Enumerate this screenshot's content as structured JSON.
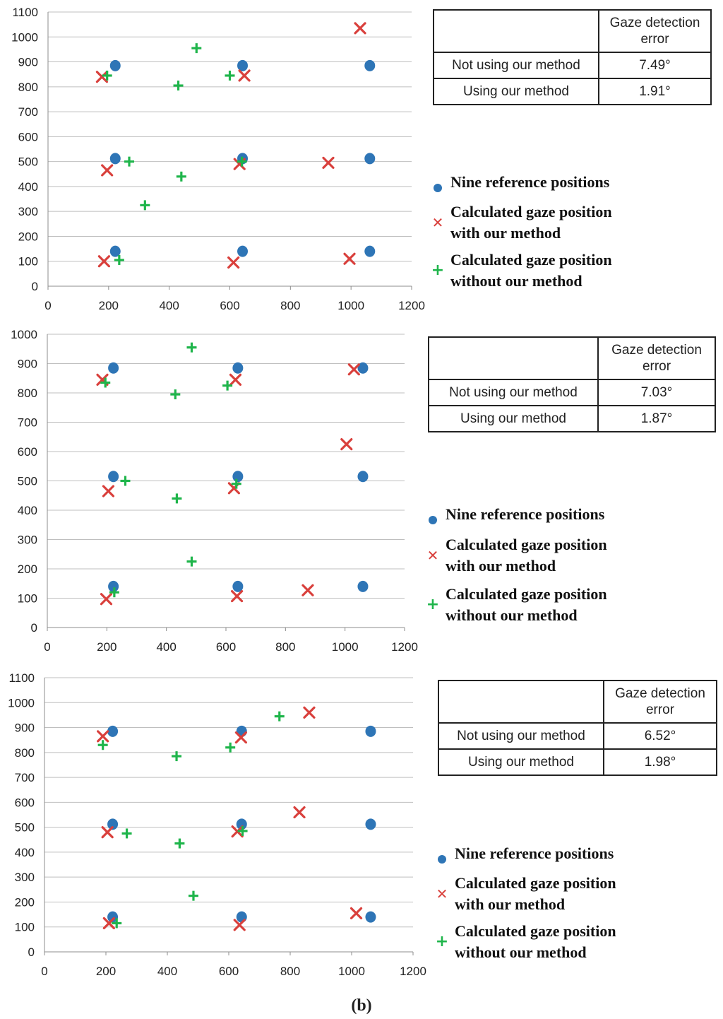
{
  "caption": "(b)",
  "colors": {
    "reference": "#2e75b6",
    "with": "#d9403c",
    "without": "#1fb54b",
    "grid": "#bfbfbf"
  },
  "legend": {
    "reference": "Nine reference positions",
    "with_line1": "Calculated gaze position",
    "with_line2": "with our method",
    "without_line1": "Calculated gaze position",
    "without_line2": "without our method"
  },
  "tables": [
    {
      "header": "Gaze detection error",
      "rows": [
        {
          "label": "Not using our method",
          "value": "7.49°"
        },
        {
          "label": "Using our method",
          "value": "1.91°"
        }
      ]
    },
    {
      "header": "Gaze detection error",
      "rows": [
        {
          "label": "Not using our method",
          "value": "7.03°"
        },
        {
          "label": "Using our method",
          "value": "1.87°"
        }
      ]
    },
    {
      "header": "Gaze detection error",
      "rows": [
        {
          "label": "Not using our method",
          "value": "6.52°"
        },
        {
          "label": "Using our method",
          "value": "1.98°"
        }
      ]
    }
  ],
  "chart_data": [
    {
      "type": "scatter",
      "xlim": [
        0,
        1200
      ],
      "ylim": [
        0,
        1100
      ],
      "xticks": [
        0,
        200,
        400,
        600,
        800,
        1000,
        1200
      ],
      "yticks": [
        0,
        100,
        200,
        300,
        400,
        500,
        600,
        700,
        800,
        900,
        1000,
        1100
      ],
      "grid": true,
      "legend_position": "right",
      "series": [
        {
          "name": "Nine reference positions",
          "marker": "dot",
          "points": [
            [
              222,
              885
            ],
            [
              642,
              885
            ],
            [
              1062,
              885
            ],
            [
              222,
              512
            ],
            [
              642,
              512
            ],
            [
              1062,
              512
            ],
            [
              222,
              140
            ],
            [
              642,
              140
            ],
            [
              1062,
              140
            ]
          ]
        },
        {
          "name": "Calculated gaze position with our method",
          "marker": "x",
          "points": [
            [
              178,
              840
            ],
            [
              648,
              845
            ],
            [
              1030,
              1035
            ],
            [
              195,
              465
            ],
            [
              632,
              490
            ],
            [
              925,
              495
            ],
            [
              185,
              100
            ],
            [
              612,
              95
            ],
            [
              995,
              110
            ]
          ]
        },
        {
          "name": "Calculated gaze position without our method",
          "marker": "plus",
          "points": [
            [
              195,
              845
            ],
            [
              490,
              955
            ],
            [
              430,
              805
            ],
            [
              600,
              845
            ],
            [
              268,
              500
            ],
            [
              440,
              440
            ],
            [
              640,
              500
            ],
            [
              320,
              325
            ],
            [
              235,
              105
            ]
          ]
        }
      ]
    },
    {
      "type": "scatter",
      "xlim": [
        0,
        1200
      ],
      "ylim": [
        0,
        1000
      ],
      "xticks": [
        0,
        200,
        400,
        600,
        800,
        1000,
        1200
      ],
      "yticks": [
        0,
        100,
        200,
        300,
        400,
        500,
        600,
        700,
        800,
        900,
        1000
      ],
      "grid": true,
      "legend_position": "right",
      "series": [
        {
          "name": "Nine reference positions",
          "marker": "dot",
          "points": [
            [
              222,
              885
            ],
            [
              640,
              885
            ],
            [
              1060,
              885
            ],
            [
              222,
              515
            ],
            [
              640,
              515
            ],
            [
              1060,
              515
            ],
            [
              222,
              140
            ],
            [
              640,
              140
            ],
            [
              1060,
              140
            ]
          ]
        },
        {
          "name": "Calculated gaze position with our method",
          "marker": "x",
          "points": [
            [
              185,
              845
            ],
            [
              632,
              845
            ],
            [
              1030,
              880
            ],
            [
              205,
              465
            ],
            [
              627,
              475
            ],
            [
              1005,
              625
            ],
            [
              198,
              97
            ],
            [
              637,
              107
            ],
            [
              875,
              127
            ]
          ]
        },
        {
          "name": "Calculated gaze position without our method",
          "marker": "plus",
          "points": [
            [
              195,
              835
            ],
            [
              485,
              955
            ],
            [
              430,
              795
            ],
            [
              605,
              825
            ],
            [
              262,
              500
            ],
            [
              435,
              440
            ],
            [
              635,
              490
            ],
            [
              485,
              225
            ],
            [
              225,
              120
            ]
          ]
        }
      ]
    },
    {
      "type": "scatter",
      "xlim": [
        0,
        1200
      ],
      "ylim": [
        0,
        1100
      ],
      "xticks": [
        0,
        200,
        400,
        600,
        800,
        1000,
        1200
      ],
      "yticks": [
        0,
        100,
        200,
        300,
        400,
        500,
        600,
        700,
        800,
        900,
        1000,
        1100
      ],
      "grid": true,
      "legend_position": "right",
      "series": [
        {
          "name": "Nine reference positions",
          "marker": "dot",
          "points": [
            [
              222,
              885
            ],
            [
              642,
              885
            ],
            [
              1062,
              885
            ],
            [
              222,
              512
            ],
            [
              642,
              512
            ],
            [
              1062,
              512
            ],
            [
              222,
              140
            ],
            [
              642,
              140
            ],
            [
              1062,
              140
            ]
          ]
        },
        {
          "name": "Calculated gaze position with our method",
          "marker": "x",
          "points": [
            [
              190,
              865
            ],
            [
              640,
              860
            ],
            [
              862,
              960
            ],
            [
              205,
              480
            ],
            [
              628,
              483
            ],
            [
              830,
              560
            ],
            [
              210,
              115
            ],
            [
              635,
              108
            ],
            [
              1015,
              155
            ]
          ]
        },
        {
          "name": "Calculated gaze position without our method",
          "marker": "plus",
          "points": [
            [
              190,
              830
            ],
            [
              765,
              945
            ],
            [
              430,
              785
            ],
            [
              605,
              820
            ],
            [
              268,
              475
            ],
            [
              440,
              435
            ],
            [
              645,
              485
            ],
            [
              485,
              225
            ],
            [
              235,
              115
            ]
          ]
        }
      ]
    }
  ]
}
